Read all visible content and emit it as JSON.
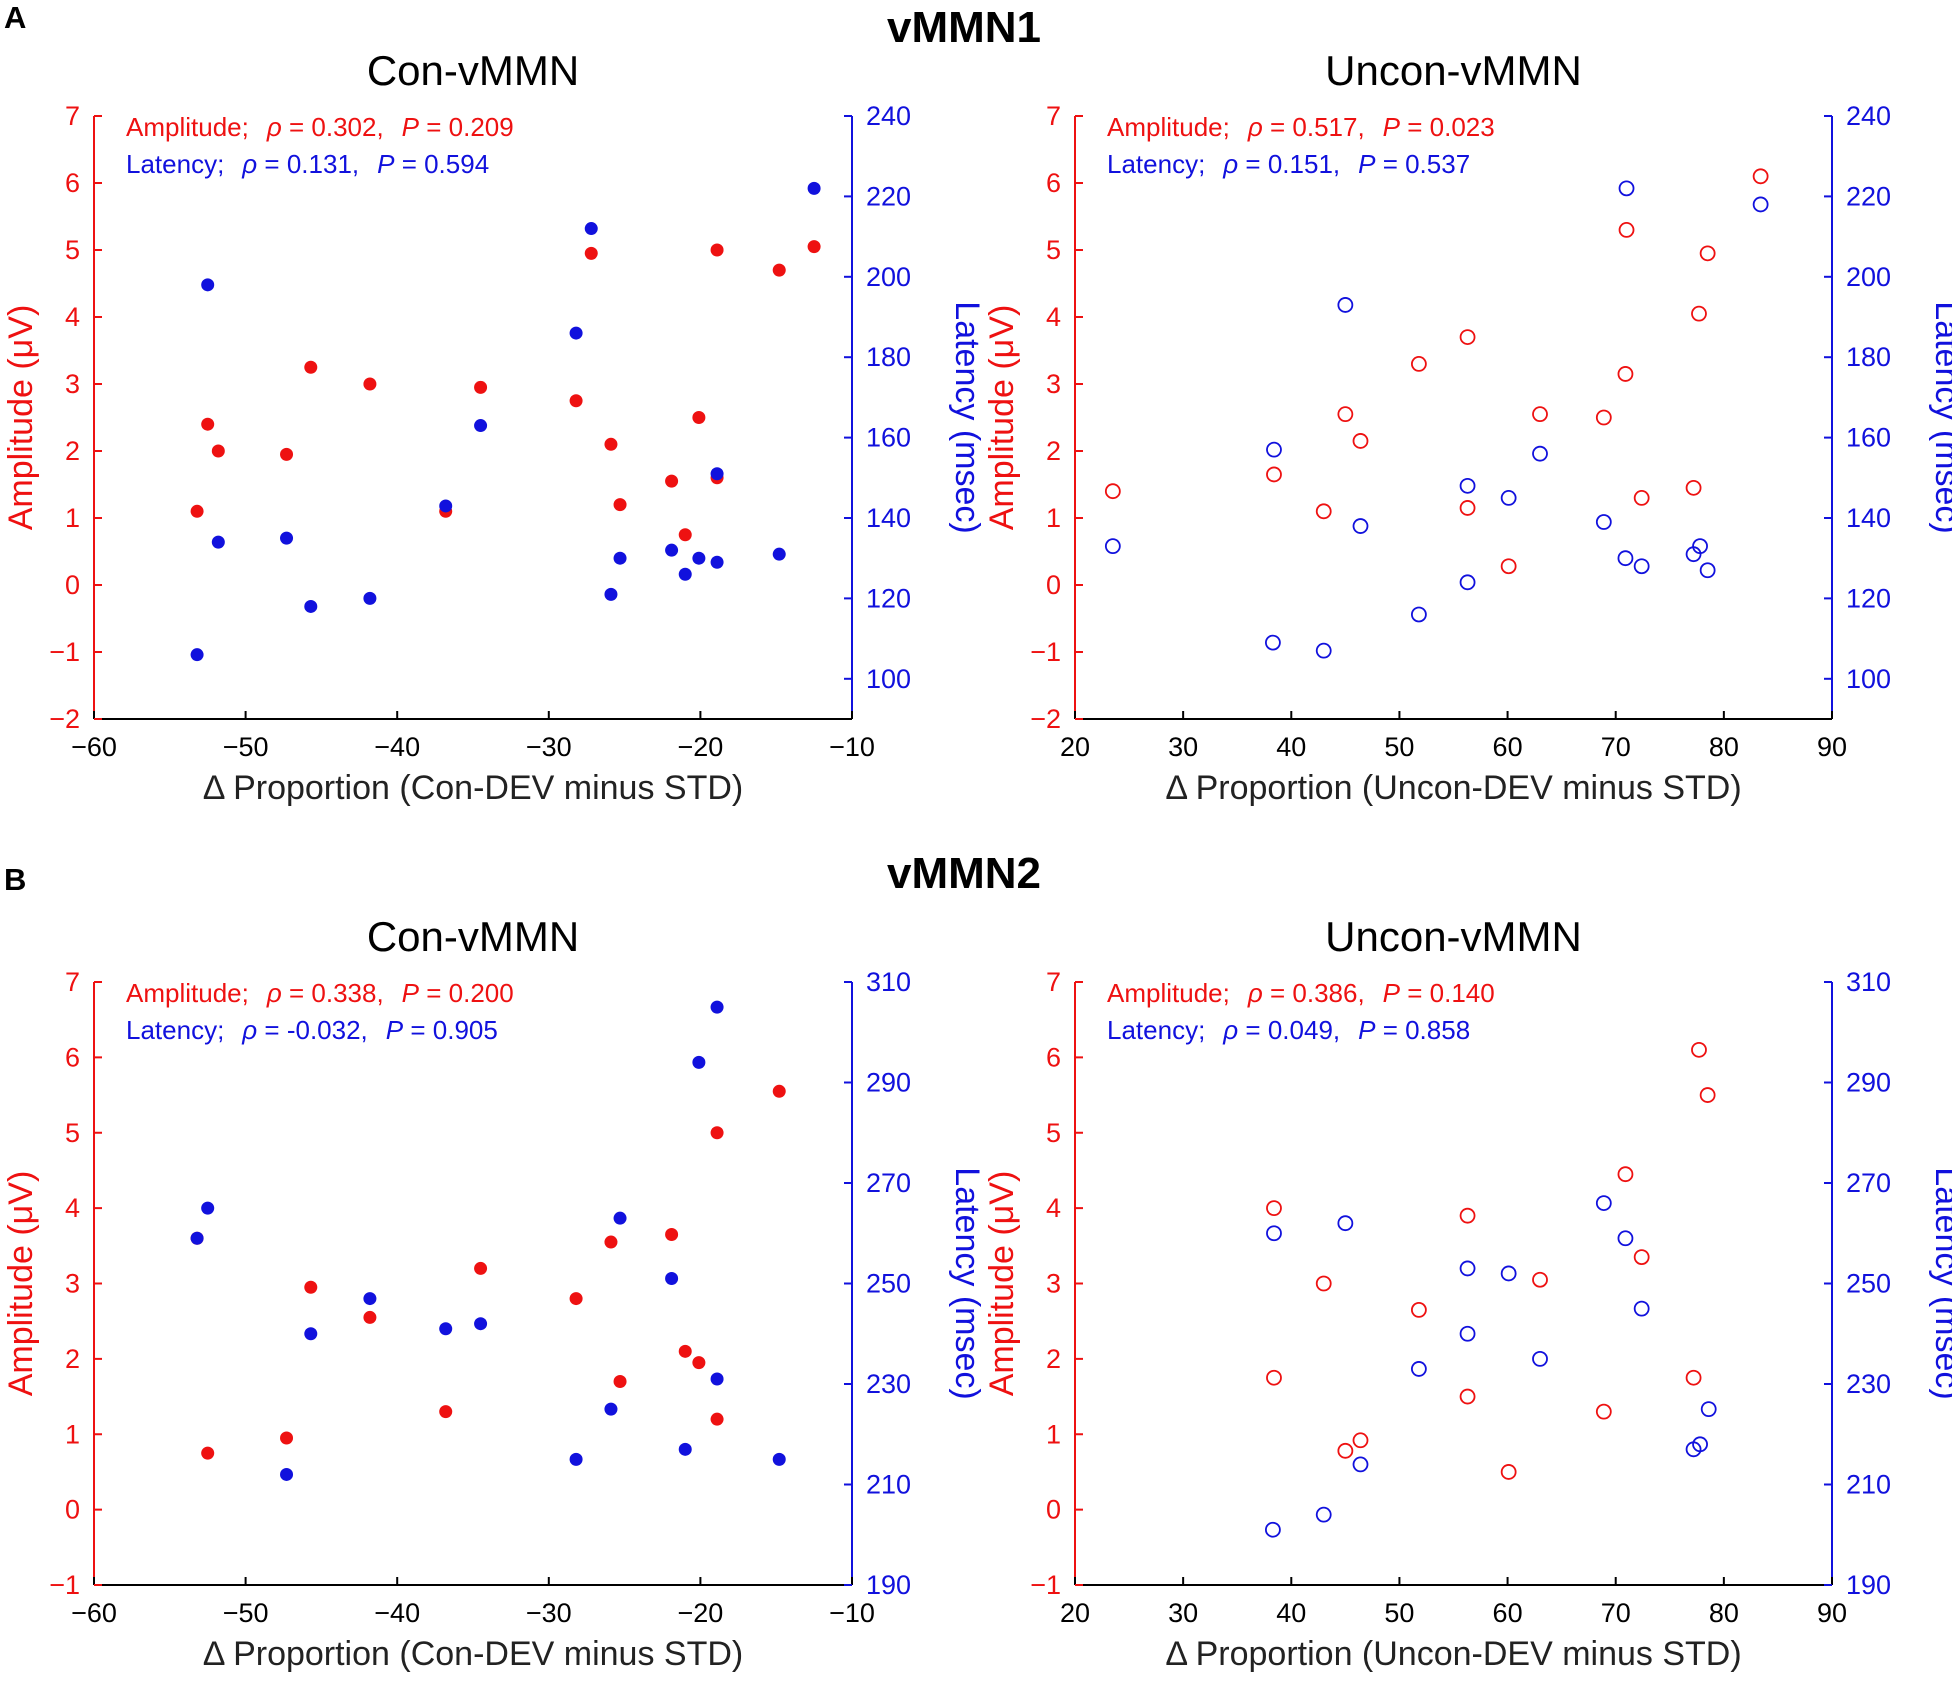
{
  "figure": {
    "panel_labels": [
      "A",
      "B"
    ],
    "section_titles": [
      "vMMN1",
      "vMMN2"
    ]
  },
  "colors": {
    "amplitude": "#ee1111",
    "latency": "#1111dd",
    "axis": "#000000"
  },
  "chart_data": [
    {
      "id": "vmmn1-con",
      "type": "scatter",
      "title": "Con-vMMN",
      "xlabel": "Δ Proportion (Con-DEV minus STD)",
      "ylabel_left": "Amplitude (μV)",
      "ylabel_right": "Latency (msec)",
      "xlim": [
        -60,
        -10
      ],
      "xticks": [
        -60,
        -50,
        -40,
        -30,
        -20,
        -10
      ],
      "ylim_left": [
        -2,
        7
      ],
      "yticks_left": [
        -2,
        -1,
        0,
        1,
        2,
        3,
        4,
        5,
        6,
        7
      ],
      "ylim_right": [
        90,
        240
      ],
      "yticks_right": [
        100,
        120,
        140,
        160,
        180,
        200,
        220,
        240
      ],
      "marker": "filled",
      "stats": {
        "amp_prefix": "Amplitude;",
        "amp_rho": " = 0.302,",
        "amp_p": " = 0.209",
        "lat_prefix": "Latency;",
        "lat_rho": " = 0.131,",
        "lat_p": " = 0.594"
      },
      "amplitude_points": [
        {
          "x": -53.2,
          "y": 1.1
        },
        {
          "x": -52.5,
          "y": 2.4
        },
        {
          "x": -51.8,
          "y": 2.0
        },
        {
          "x": -47.3,
          "y": 1.95
        },
        {
          "x": -45.7,
          "y": 3.25
        },
        {
          "x": -41.8,
          "y": 3.0
        },
        {
          "x": -36.8,
          "y": 1.1
        },
        {
          "x": -34.5,
          "y": 2.95
        },
        {
          "x": -28.2,
          "y": 2.75
        },
        {
          "x": -27.2,
          "y": 4.95
        },
        {
          "x": -25.9,
          "y": 2.1
        },
        {
          "x": -25.3,
          "y": 1.2
        },
        {
          "x": -21.9,
          "y": 1.55
        },
        {
          "x": -21.0,
          "y": 0.75
        },
        {
          "x": -20.1,
          "y": 2.5
        },
        {
          "x": -18.9,
          "y": 5.0
        },
        {
          "x": -18.9,
          "y": 1.6
        },
        {
          "x": -14.8,
          "y": 4.7
        },
        {
          "x": -12.5,
          "y": 5.05
        }
      ],
      "latency_points": [
        {
          "x": -53.2,
          "y": 106
        },
        {
          "x": -52.5,
          "y": 198
        },
        {
          "x": -51.8,
          "y": 134
        },
        {
          "x": -47.3,
          "y": 135
        },
        {
          "x": -45.7,
          "y": 118
        },
        {
          "x": -41.8,
          "y": 120
        },
        {
          "x": -36.8,
          "y": 143
        },
        {
          "x": -34.5,
          "y": 163
        },
        {
          "x": -28.2,
          "y": 186
        },
        {
          "x": -27.2,
          "y": 212
        },
        {
          "x": -25.9,
          "y": 121
        },
        {
          "x": -25.3,
          "y": 130
        },
        {
          "x": -21.9,
          "y": 132
        },
        {
          "x": -21.0,
          "y": 126
        },
        {
          "x": -20.1,
          "y": 130
        },
        {
          "x": -18.9,
          "y": 129
        },
        {
          "x": -18.9,
          "y": 151
        },
        {
          "x": -14.8,
          "y": 131
        },
        {
          "x": -12.5,
          "y": 222
        }
      ]
    },
    {
      "id": "vmmn1-uncon",
      "type": "scatter",
      "title": "Uncon-vMMN",
      "xlabel": "Δ Proportion (Uncon-DEV minus STD)",
      "ylabel_left": "Amplitude (μV)",
      "ylabel_right": "Latency (msec)",
      "xlim": [
        20,
        90
      ],
      "xticks": [
        20,
        30,
        40,
        50,
        60,
        70,
        80,
        90
      ],
      "ylim_left": [
        -2,
        7
      ],
      "yticks_left": [
        -2,
        -1,
        0,
        1,
        2,
        3,
        4,
        5,
        6,
        7
      ],
      "ylim_right": [
        90,
        240
      ],
      "yticks_right": [
        100,
        120,
        140,
        160,
        180,
        200,
        220,
        240
      ],
      "marker": "open",
      "stats": {
        "amp_prefix": "Amplitude;",
        "amp_rho": " = 0.517,",
        "amp_p": " = 0.023",
        "lat_prefix": "Latency;",
        "lat_rho": " = 0.151,",
        "lat_p": " = 0.537"
      },
      "amplitude_points": [
        {
          "x": 23.5,
          "y": 1.4
        },
        {
          "x": 38.4,
          "y": 1.65
        },
        {
          "x": 43.0,
          "y": 1.1
        },
        {
          "x": 45.0,
          "y": 2.55
        },
        {
          "x": 46.4,
          "y": 2.15
        },
        {
          "x": 51.8,
          "y": 3.3
        },
        {
          "x": 56.3,
          "y": 1.15
        },
        {
          "x": 56.3,
          "y": 3.7
        },
        {
          "x": 60.1,
          "y": 0.28
        },
        {
          "x": 63.0,
          "y": 2.55
        },
        {
          "x": 68.9,
          "y": 2.5
        },
        {
          "x": 70.9,
          "y": 3.15
        },
        {
          "x": 71.0,
          "y": 5.3
        },
        {
          "x": 72.4,
          "y": 1.3
        },
        {
          "x": 77.2,
          "y": 1.45
        },
        {
          "x": 77.7,
          "y": 4.05
        },
        {
          "x": 78.5,
          "y": 4.95
        },
        {
          "x": 83.4,
          "y": 6.1
        }
      ],
      "latency_points": [
        {
          "x": 23.5,
          "y": 133
        },
        {
          "x": 38.4,
          "y": 157
        },
        {
          "x": 38.3,
          "y": 109
        },
        {
          "x": 43.0,
          "y": 107
        },
        {
          "x": 45.0,
          "y": 193
        },
        {
          "x": 46.4,
          "y": 138
        },
        {
          "x": 51.8,
          "y": 116
        },
        {
          "x": 56.3,
          "y": 124
        },
        {
          "x": 56.3,
          "y": 148
        },
        {
          "x": 60.1,
          "y": 145
        },
        {
          "x": 63.0,
          "y": 156
        },
        {
          "x": 68.9,
          "y": 139
        },
        {
          "x": 70.9,
          "y": 130
        },
        {
          "x": 71.0,
          "y": 222
        },
        {
          "x": 72.4,
          "y": 128
        },
        {
          "x": 77.2,
          "y": 131
        },
        {
          "x": 77.8,
          "y": 133
        },
        {
          "x": 78.5,
          "y": 127
        },
        {
          "x": 83.4,
          "y": 218
        }
      ]
    },
    {
      "id": "vmmn2-con",
      "type": "scatter",
      "title": "Con-vMMN",
      "xlabel": "Δ Proportion (Con-DEV minus STD)",
      "ylabel_left": "Amplitude (μV)",
      "ylabel_right": "Latency (msec)",
      "xlim": [
        -60,
        -10
      ],
      "xticks": [
        -60,
        -50,
        -40,
        -30,
        -20,
        -10
      ],
      "ylim_left": [
        -1,
        7
      ],
      "yticks_left": [
        -1,
        0,
        1,
        2,
        3,
        4,
        5,
        6,
        7
      ],
      "ylim_right": [
        190,
        310
      ],
      "yticks_right": [
        190,
        210,
        230,
        250,
        270,
        290,
        310
      ],
      "marker": "filled",
      "stats": {
        "amp_prefix": "Amplitude;",
        "amp_rho": " = 0.338,",
        "amp_p": " = 0.200",
        "lat_prefix": "Latency;",
        "lat_rho": " = -0.032,",
        "lat_p": " = 0.905"
      },
      "amplitude_points": [
        {
          "x": -53.2,
          "y": 3.6
        },
        {
          "x": -52.5,
          "y": 0.75
        },
        {
          "x": -47.3,
          "y": 0.95
        },
        {
          "x": -45.7,
          "y": 2.95
        },
        {
          "x": -41.8,
          "y": 2.55
        },
        {
          "x": -36.8,
          "y": 1.3
        },
        {
          "x": -34.5,
          "y": 3.2
        },
        {
          "x": -28.2,
          "y": 2.8
        },
        {
          "x": -25.9,
          "y": 3.55
        },
        {
          "x": -25.3,
          "y": 1.7
        },
        {
          "x": -21.9,
          "y": 3.65
        },
        {
          "x": -21.0,
          "y": 2.1
        },
        {
          "x": -20.1,
          "y": 1.95
        },
        {
          "x": -18.9,
          "y": 5.0
        },
        {
          "x": -18.9,
          "y": 1.2
        },
        {
          "x": -14.8,
          "y": 5.55
        }
      ],
      "latency_points": [
        {
          "x": -53.2,
          "y": 259
        },
        {
          "x": -52.5,
          "y": 265
        },
        {
          "x": -47.3,
          "y": 212
        },
        {
          "x": -45.7,
          "y": 240
        },
        {
          "x": -41.8,
          "y": 247
        },
        {
          "x": -36.8,
          "y": 241
        },
        {
          "x": -34.5,
          "y": 242
        },
        {
          "x": -28.2,
          "y": 215
        },
        {
          "x": -25.9,
          "y": 225
        },
        {
          "x": -25.3,
          "y": 263
        },
        {
          "x": -21.9,
          "y": 251
        },
        {
          "x": -21.0,
          "y": 217
        },
        {
          "x": -20.1,
          "y": 294
        },
        {
          "x": -18.9,
          "y": 305
        },
        {
          "x": -18.9,
          "y": 231
        },
        {
          "x": -14.8,
          "y": 215
        }
      ]
    },
    {
      "id": "vmmn2-uncon",
      "type": "scatter",
      "title": "Uncon-vMMN",
      "xlabel": "Δ Proportion (Uncon-DEV minus STD)",
      "ylabel_left": "Amplitude (μV)",
      "ylabel_right": "Latency (msec)",
      "xlim": [
        20,
        90
      ],
      "xticks": [
        20,
        30,
        40,
        50,
        60,
        70,
        80,
        90
      ],
      "ylim_left": [
        -1,
        7
      ],
      "yticks_left": [
        -1,
        0,
        1,
        2,
        3,
        4,
        5,
        6,
        7
      ],
      "ylim_right": [
        190,
        310
      ],
      "yticks_right": [
        190,
        210,
        230,
        250,
        270,
        290,
        310
      ],
      "marker": "open",
      "stats": {
        "amp_prefix": "Amplitude;",
        "amp_rho": " = 0.386,",
        "amp_p": " = 0.140",
        "lat_prefix": "Latency;",
        "lat_rho": " = 0.049,",
        "lat_p": " = 0.858"
      },
      "amplitude_points": [
        {
          "x": 38.4,
          "y": 4.0
        },
        {
          "x": 38.4,
          "y": 1.75
        },
        {
          "x": 43.0,
          "y": 3.0
        },
        {
          "x": 45.0,
          "y": 0.78
        },
        {
          "x": 46.4,
          "y": 0.92
        },
        {
          "x": 51.8,
          "y": 2.65
        },
        {
          "x": 56.3,
          "y": 3.9
        },
        {
          "x": 56.3,
          "y": 1.5
        },
        {
          "x": 60.1,
          "y": 0.5
        },
        {
          "x": 63.0,
          "y": 3.05
        },
        {
          "x": 68.9,
          "y": 1.3
        },
        {
          "x": 70.9,
          "y": 4.45
        },
        {
          "x": 72.4,
          "y": 3.35
        },
        {
          "x": 77.2,
          "y": 1.75
        },
        {
          "x": 77.7,
          "y": 6.1
        },
        {
          "x": 78.5,
          "y": 5.5
        }
      ],
      "latency_points": [
        {
          "x": 38.4,
          "y": 260
        },
        {
          "x": 38.3,
          "y": 201
        },
        {
          "x": 43.0,
          "y": 204
        },
        {
          "x": 45.0,
          "y": 262
        },
        {
          "x": 46.4,
          "y": 214
        },
        {
          "x": 51.8,
          "y": 233
        },
        {
          "x": 56.3,
          "y": 240
        },
        {
          "x": 56.3,
          "y": 253
        },
        {
          "x": 60.1,
          "y": 252
        },
        {
          "x": 63.0,
          "y": 235
        },
        {
          "x": 68.9,
          "y": 266
        },
        {
          "x": 70.9,
          "y": 259
        },
        {
          "x": 72.4,
          "y": 245
        },
        {
          "x": 77.2,
          "y": 217
        },
        {
          "x": 77.8,
          "y": 218
        },
        {
          "x": 78.6,
          "y": 225
        }
      ]
    }
  ]
}
